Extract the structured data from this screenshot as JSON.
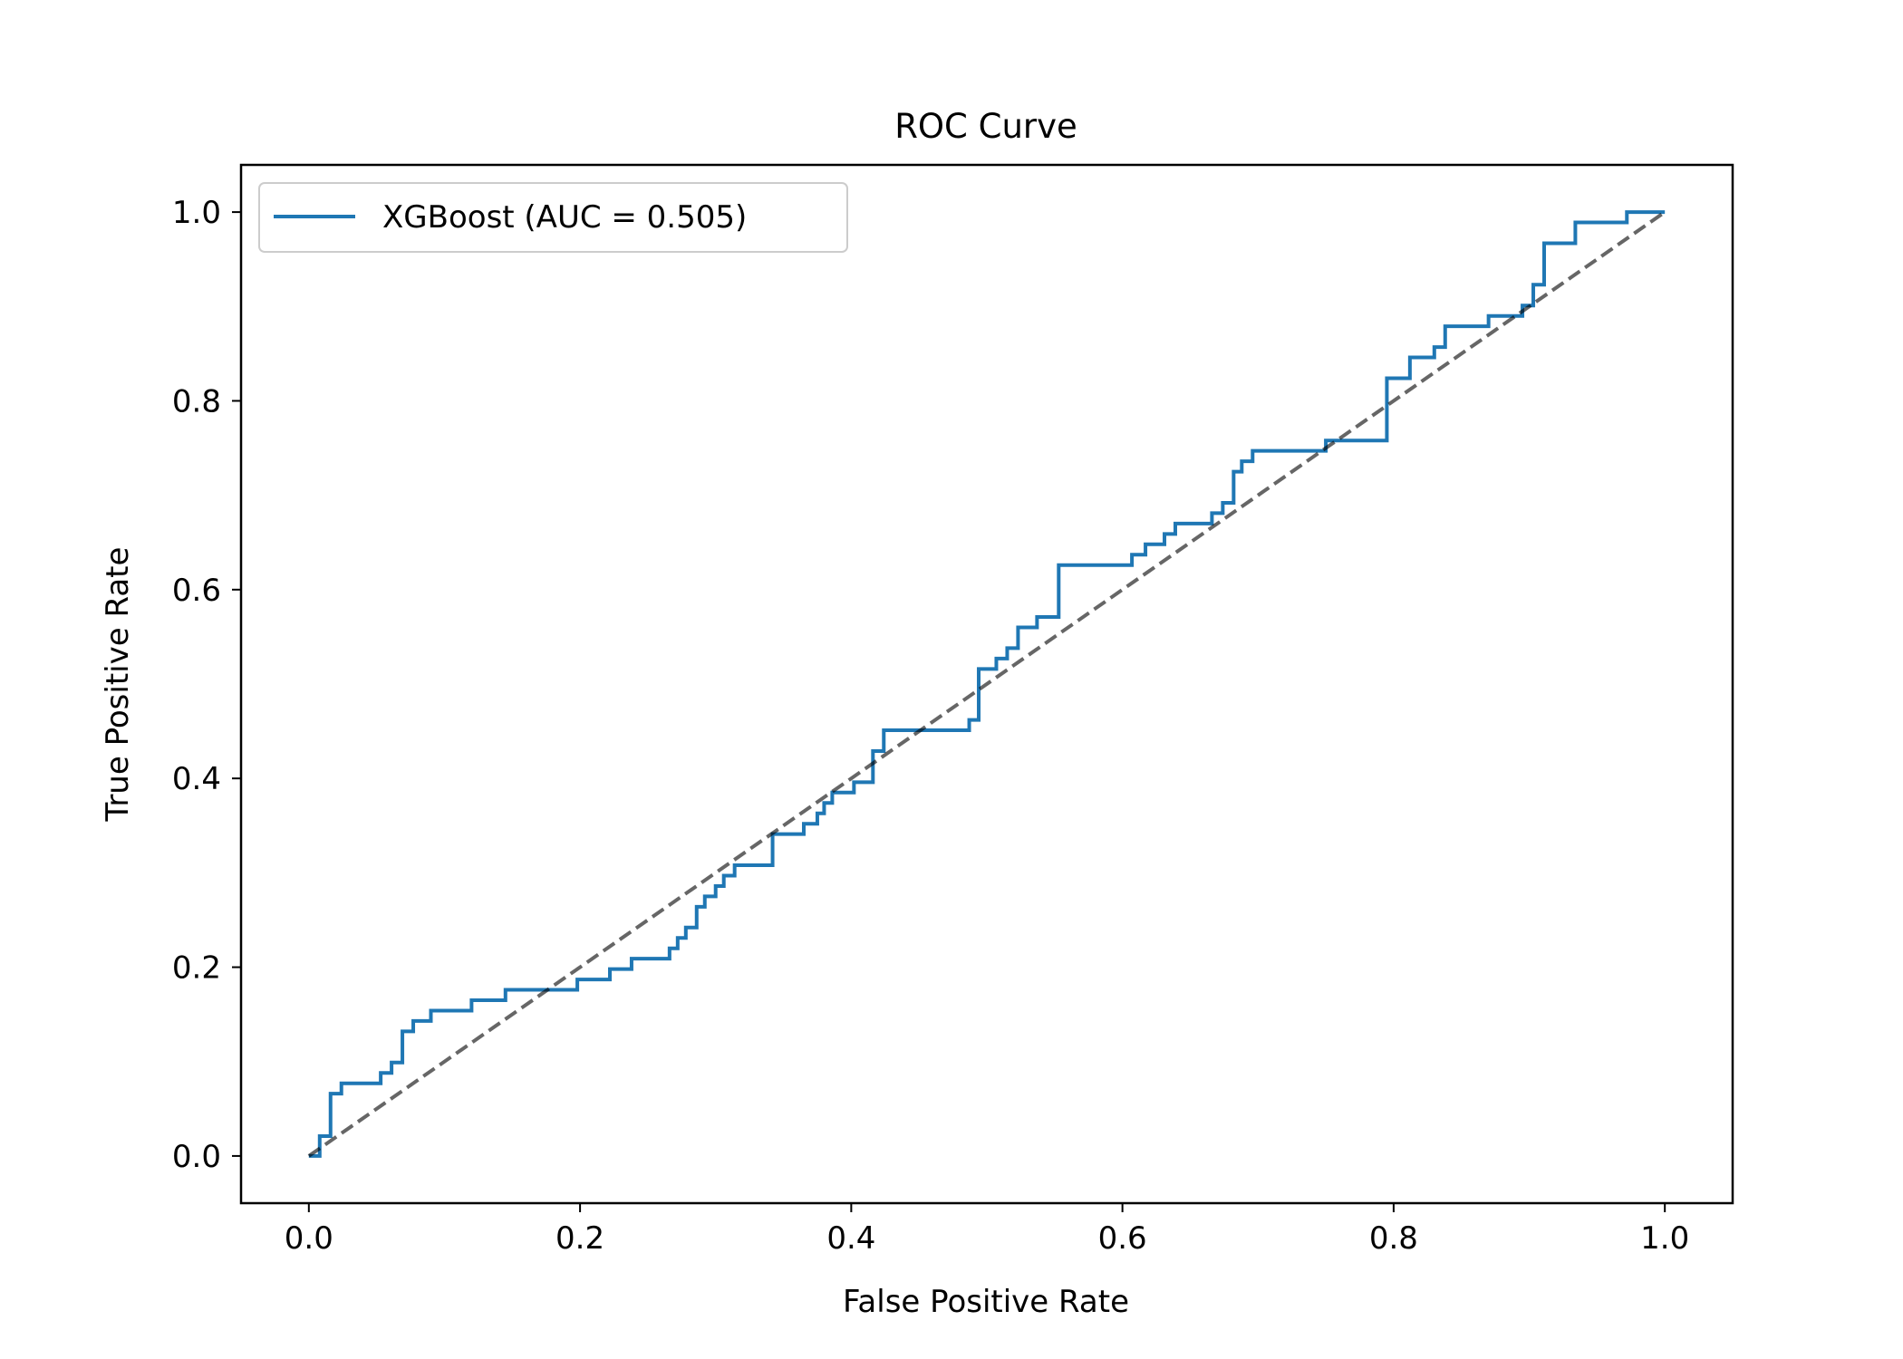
{
  "chart_data": {
    "type": "line",
    "title": "ROC Curve",
    "xlabel": "False Positive Rate",
    "ylabel": "True Positive Rate",
    "xlim": [
      -0.05,
      1.05
    ],
    "ylim": [
      -0.05,
      1.05
    ],
    "xticks": [
      0.0,
      0.2,
      0.4,
      0.6,
      0.8,
      1.0
    ],
    "yticks": [
      0.0,
      0.2,
      0.4,
      0.6,
      0.8,
      1.0
    ],
    "xtick_labels": [
      "0.0",
      "0.2",
      "0.4",
      "0.6",
      "0.8",
      "1.0"
    ],
    "ytick_labels": [
      "0.0",
      "0.2",
      "0.4",
      "0.6",
      "0.8",
      "1.0"
    ],
    "grid": false,
    "legend_position": "upper-left",
    "series": [
      {
        "name": "XGBoost (AUC = 0.505)",
        "color": "#1f77b4",
        "style": "solid",
        "step": true,
        "x": [
          0.0,
          0.0,
          0.008,
          0.008,
          0.016,
          0.016,
          0.024,
          0.024,
          0.053,
          0.053,
          0.061,
          0.061,
          0.069,
          0.069,
          0.077,
          0.077,
          0.09,
          0.09,
          0.12,
          0.12,
          0.145,
          0.145,
          0.198,
          0.198,
          0.222,
          0.222,
          0.238,
          0.238,
          0.266,
          0.266,
          0.272,
          0.272,
          0.278,
          0.278,
          0.286,
          0.286,
          0.292,
          0.292,
          0.3,
          0.3,
          0.306,
          0.306,
          0.314,
          0.314,
          0.342,
          0.342,
          0.365,
          0.365,
          0.375,
          0.375,
          0.38,
          0.38,
          0.386,
          0.386,
          0.402,
          0.402,
          0.416,
          0.416,
          0.424,
          0.424,
          0.44,
          0.44,
          0.487,
          0.487,
          0.494,
          0.494,
          0.507,
          0.507,
          0.515,
          0.515,
          0.523,
          0.523,
          0.537,
          0.537,
          0.553,
          0.553,
          0.607,
          0.607,
          0.617,
          0.617,
          0.631,
          0.631,
          0.639,
          0.639,
          0.666,
          0.666,
          0.674,
          0.674,
          0.682,
          0.682,
          0.688,
          0.688,
          0.696,
          0.696,
          0.75,
          0.75,
          0.795,
          0.795,
          0.812,
          0.812,
          0.83,
          0.83,
          0.838,
          0.838,
          0.87,
          0.87,
          0.895,
          0.895,
          0.903,
          0.903,
          0.911,
          0.911,
          0.934,
          0.934,
          0.972,
          0.972,
          0.978,
          0.978,
          1.0
        ],
        "y": [
          0.0,
          0.0,
          0.0,
          0.021,
          0.021,
          0.066,
          0.066,
          0.077,
          0.077,
          0.088,
          0.088,
          0.099,
          0.099,
          0.132,
          0.132,
          0.143,
          0.143,
          0.154,
          0.154,
          0.165,
          0.165,
          0.176,
          0.176,
          0.187,
          0.187,
          0.198,
          0.198,
          0.209,
          0.209,
          0.22,
          0.22,
          0.231,
          0.231,
          0.242,
          0.242,
          0.264,
          0.264,
          0.275,
          0.275,
          0.286,
          0.286,
          0.297,
          0.297,
          0.308,
          0.308,
          0.341,
          0.341,
          0.352,
          0.352,
          0.363,
          0.363,
          0.374,
          0.374,
          0.385,
          0.385,
          0.396,
          0.396,
          0.429,
          0.429,
          0.451,
          0.451,
          0.451,
          0.451,
          0.462,
          0.462,
          0.516,
          0.516,
          0.527,
          0.527,
          0.538,
          0.538,
          0.56,
          0.56,
          0.571,
          0.571,
          0.626,
          0.626,
          0.637,
          0.637,
          0.648,
          0.648,
          0.659,
          0.659,
          0.67,
          0.67,
          0.681,
          0.681,
          0.692,
          0.692,
          0.725,
          0.725,
          0.736,
          0.736,
          0.747,
          0.747,
          0.758,
          0.758,
          0.824,
          0.824,
          0.846,
          0.846,
          0.857,
          0.857,
          0.879,
          0.879,
          0.89,
          0.89,
          0.901,
          0.901,
          0.923,
          0.923,
          0.967,
          0.967,
          0.989,
          0.989,
          1.0,
          1.0,
          1.0,
          1.0
        ]
      },
      {
        "name": "",
        "color": "#000000",
        "opacity": 0.6,
        "style": "dashed",
        "x": [
          0.0,
          1.0
        ],
        "y": [
          0.0,
          1.0
        ]
      }
    ]
  }
}
